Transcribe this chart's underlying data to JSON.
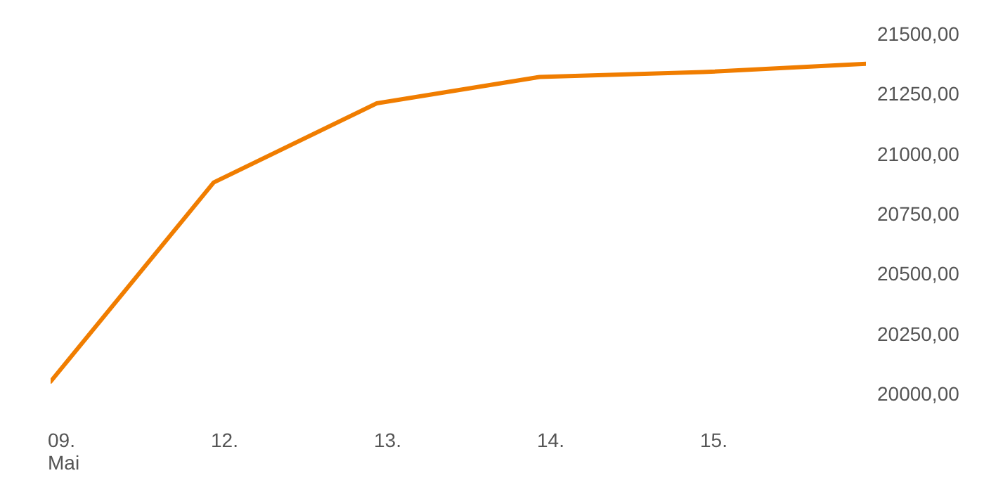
{
  "chart_data": {
    "type": "line",
    "categories": [
      "09. Mai",
      "12.",
      "13.",
      "14.",
      "15.",
      null
    ],
    "series": [
      {
        "color": "#f07d00",
        "values": [
          20050,
          20880,
          21210,
          21320,
          21340,
          21375
        ]
      }
    ],
    "ylim": [
      20000,
      21500
    ],
    "yticks": [
      {
        "value": 20000,
        "label": "20000,00"
      },
      {
        "value": 20250,
        "label": "20250,00"
      },
      {
        "value": 20500,
        "label": "20500,00"
      },
      {
        "value": 20750,
        "label": "20750,00"
      },
      {
        "value": 21000,
        "label": "21000,00"
      },
      {
        "value": 21250,
        "label": "21250,00"
      },
      {
        "value": 21500,
        "label": "21500,00"
      }
    ],
    "grid": false,
    "legend": false,
    "marker": "none",
    "line_style": "solid"
  }
}
